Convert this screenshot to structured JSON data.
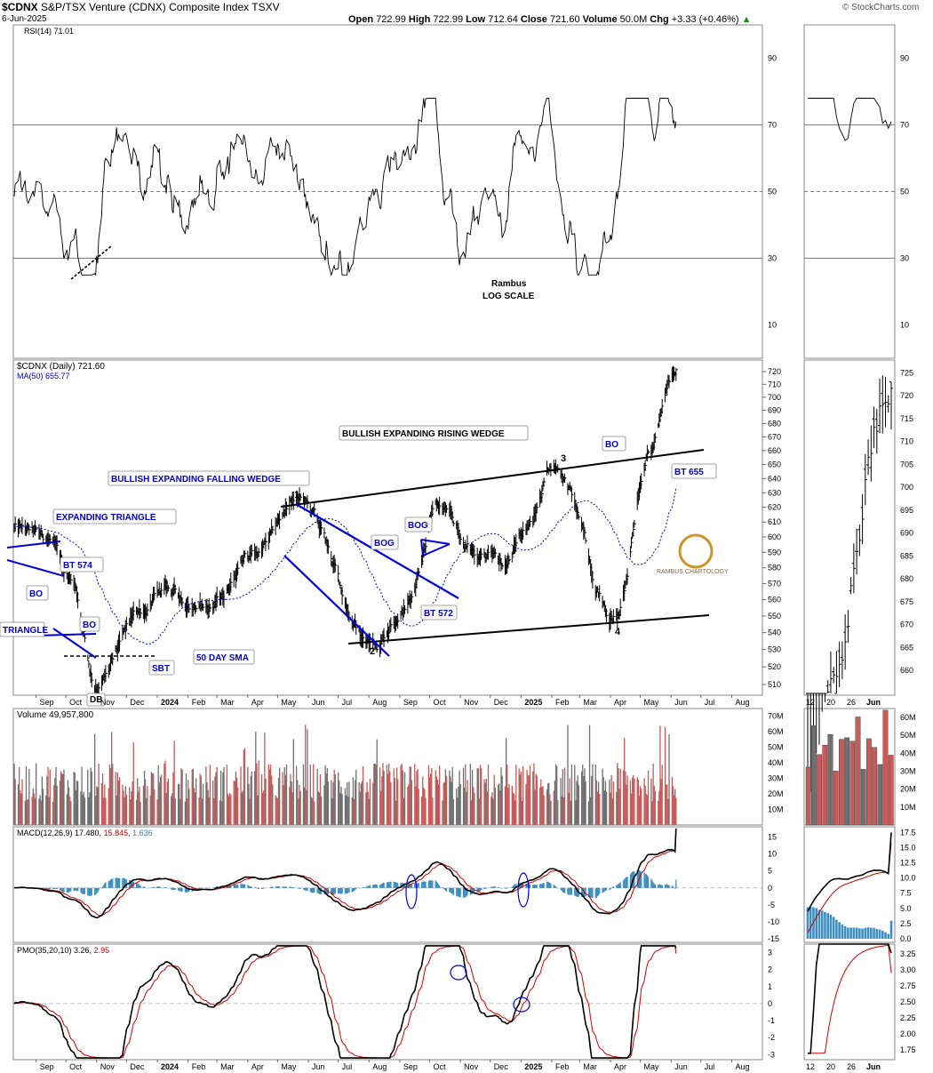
{
  "header": {
    "symbol": "$CDNX",
    "name": "S&P/TSX Venture (CDNX) Composite Index",
    "exchange": "TSXV",
    "date": "6-Jun-2025",
    "open_label": "Open",
    "open": "722.99",
    "high_label": "High",
    "high": "722.99",
    "low_label": "Low",
    "low": "712.64",
    "close_label": "Close",
    "close": "721.60",
    "volume_label": "Volume",
    "volume": "50.0M",
    "chg_label": "Chg",
    "chg": "+3.33 (+0.46%)",
    "watermark": "© StockCharts.com"
  },
  "colors": {
    "price_bar": "#000000",
    "ma": "#0000cc",
    "trend_blue": "#0000dd",
    "annotation_text": "#0000cc",
    "vol_up": "#c85a5a",
    "vol_down": "#707070",
    "macd_hist": "#3c8fc0",
    "signal": "#d00000",
    "macd_value": "#3a7fb0",
    "grid": "#cccccc",
    "axis": "#666666",
    "logo_gold": "#c8962a"
  },
  "chart_data": [
    {
      "panel": "rsi",
      "type": "line",
      "title": "RSI(14) 71.01",
      "y_ticks": [
        "90",
        "70",
        "50",
        "30",
        "10"
      ],
      "ylim": [
        0,
        100
      ],
      "reference_lines": [
        70,
        50,
        30
      ],
      "series": [
        {
          "name": "RSI(14)",
          "last": 71.01
        }
      ],
      "notes": [
        "Rambus",
        "LOG SCALE"
      ]
    },
    {
      "panel": "price",
      "type": "ohlc",
      "title": "$CDNX (Daily) 721.60",
      "ma_label": "MA(50) 655.77",
      "y_ticks": [
        "720",
        "710",
        "700",
        "690",
        "680",
        "670",
        "660",
        "650",
        "640",
        "630",
        "620",
        "610",
        "600",
        "590",
        "580",
        "570",
        "560",
        "550",
        "540",
        "530",
        "520",
        "510"
      ],
      "ylim": [
        505,
        725
      ],
      "x_ticks": [
        "Sep",
        "Oct",
        "Nov",
        "Dec",
        "2024",
        "Feb",
        "Mar",
        "Apr",
        "May",
        "Jun",
        "Jul",
        "Aug",
        "Sep",
        "Oct",
        "Nov",
        "Dec",
        "2025",
        "Feb",
        "Mar",
        "Apr",
        "May",
        "Jun",
        "Jul",
        "Aug"
      ],
      "key_points": [
        {
          "date": "2023-11-01",
          "value": 510
        },
        {
          "date": "2024-05-20",
          "value": 625
        },
        {
          "date": "2024-08-05",
          "value": 533
        },
        {
          "date": "2025-02-01",
          "value": 650
        },
        {
          "date": "2025-04-07",
          "value": 548
        },
        {
          "date": "2025-06-06",
          "value": 721.6
        }
      ],
      "annotations": [
        "EXPANDING TRIANGLE",
        "BT 574",
        "BO",
        "TRIANGLE",
        "BO",
        "DB",
        "SBT",
        "50 DAY SMA",
        "BULLISH EXPANDING FALLING WEDGE",
        "1",
        "2",
        "BOG",
        "BOG",
        "BT 572",
        "BULLISH EXPANDING RISING WEDGE",
        "3",
        "4",
        "BO",
        "BT 655"
      ],
      "logo": "RAMBUS CHARTOLOGY"
    },
    {
      "panel": "volume",
      "type": "bar",
      "title": "Volume 49,957,800",
      "y_ticks": [
        "70M",
        "60M",
        "50M",
        "40M",
        "30M",
        "20M",
        "10M"
      ],
      "ylim": [
        0,
        75
      ]
    },
    {
      "panel": "macd",
      "type": "line",
      "title_prefix": "MACD(12,26,9)",
      "macd": "17.480",
      "signal": "15.845",
      "histogram": "1.636",
      "y_ticks": [
        "15",
        "10",
        "5",
        "0",
        "-5",
        "-10",
        "-15"
      ],
      "ylim": [
        -16,
        18
      ]
    },
    {
      "panel": "pmo",
      "type": "line",
      "title_prefix": "PMO(35,20,10)",
      "pmo": "3.26",
      "signal": "2.95",
      "y_ticks": [
        "3",
        "2",
        "1",
        "0",
        "-1",
        "-2",
        "-3"
      ],
      "ylim": [
        -3.3,
        3.5
      ],
      "x_ticks": [
        "Sep",
        "Oct",
        "Nov",
        "Dec",
        "2024",
        "Feb",
        "Mar",
        "Apr",
        "May",
        "Jun",
        "Jul",
        "Aug",
        "Sep",
        "Oct",
        "Nov",
        "Dec",
        "2025",
        "Feb",
        "Mar",
        "Apr",
        "May",
        "Jun",
        "Jul",
        "Aug"
      ]
    },
    {
      "panel": "zoom",
      "type": "ohlc",
      "rsi_ticks": [
        "90",
        "70",
        "50",
        "30",
        "10"
      ],
      "price_ticks": [
        "725",
        "720",
        "715",
        "710",
        "705",
        "700",
        "695",
        "690",
        "685",
        "680",
        "675",
        "670",
        "665",
        "660"
      ],
      "volume_ticks": [
        "60M",
        "50M",
        "40M",
        "30M",
        "20M",
        "10M"
      ],
      "macd_ticks": [
        "17.5",
        "15.0",
        "12.5",
        "10.0",
        "7.5",
        "5.0",
        "2.5",
        "0.0"
      ],
      "pmo_ticks": [
        "3.25",
        "3.00",
        "2.75",
        "2.50",
        "2.25",
        "2.00",
        "1.75"
      ],
      "x_ticks": [
        "12",
        "20",
        "26",
        "Jun"
      ]
    }
  ]
}
